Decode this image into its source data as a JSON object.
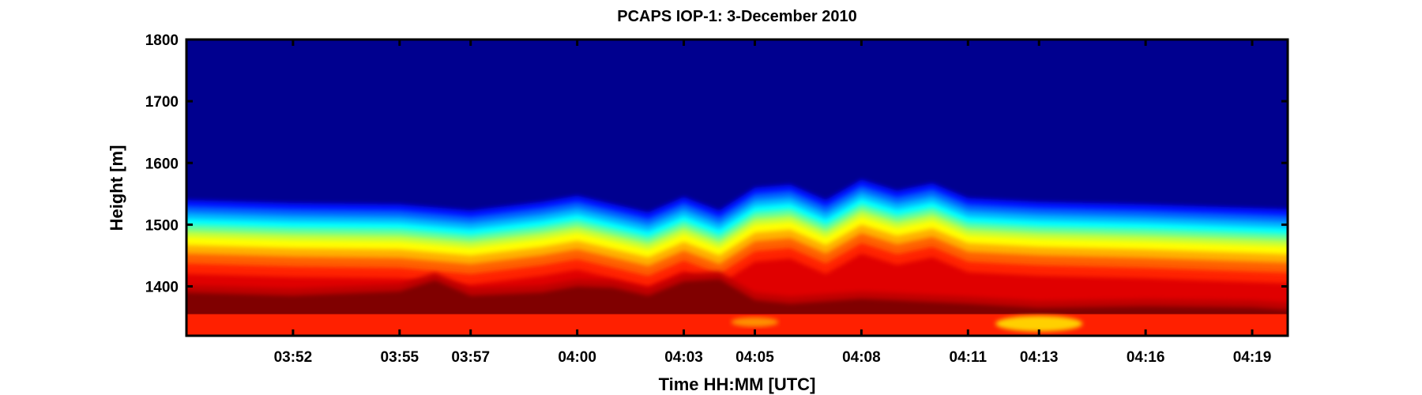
{
  "chart_data": {
    "type": "heatmap",
    "title": "PCAPS IOP-1: 3-December 2010",
    "xlabel": "Time HH:MM [UTC]",
    "ylabel": "Height [m]",
    "colormap": "jet",
    "colormap_colors": [
      "#00008f",
      "#0000ff",
      "#00ffff",
      "#ffff00",
      "#ff0000",
      "#800000"
    ],
    "xlim": [
      "03:49",
      "04:20"
    ],
    "ylim": [
      1320,
      1800
    ],
    "x_ticks": [
      "03:52",
      "03:55",
      "03:57",
      "04:00",
      "04:03",
      "04:05",
      "04:08",
      "04:11",
      "04:13",
      "04:16",
      "04:19"
    ],
    "y_ticks": [
      1400,
      1500,
      1600,
      1700,
      1800
    ],
    "surface_layer_top_m": 1355,
    "layer_top": {
      "time": [
        "03:49",
        "03:52",
        "03:55",
        "03:57",
        "03:59",
        "04:00",
        "04:02",
        "04:03",
        "04:04",
        "04:05",
        "04:06",
        "04:07",
        "04:08",
        "04:09",
        "04:10",
        "04:11",
        "04:13",
        "04:16",
        "04:19",
        "04:20"
      ],
      "height_m": [
        1495,
        1490,
        1488,
        1478,
        1492,
        1502,
        1475,
        1500,
        1478,
        1515,
        1520,
        1495,
        1528,
        1510,
        1522,
        1498,
        1492,
        1488,
        1482,
        1480
      ]
    },
    "dark_core_top": {
      "time": [
        "03:49",
        "03:52",
        "03:55",
        "03:56",
        "03:57",
        "03:59",
        "04:00",
        "04:01",
        "04:02",
        "04:03",
        "04:04",
        "04:05",
        "04:06",
        "04:08",
        "04:11",
        "04:13",
        "04:16",
        "04:19",
        "04:20"
      ],
      "height_m": [
        1390,
        1385,
        1392,
        1410,
        1385,
        1390,
        1400,
        1398,
        1385,
        1408,
        1412,
        1378,
        1372,
        1380,
        1372,
        1365,
        1368,
        1366,
        1362
      ]
    },
    "grid": false
  }
}
